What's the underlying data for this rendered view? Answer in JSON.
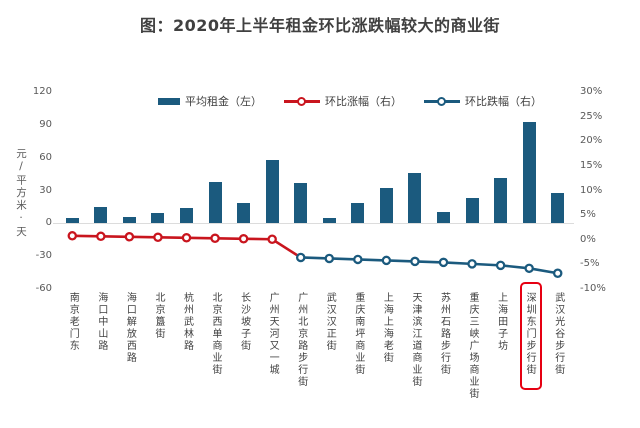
{
  "chart_data": {
    "type": "combo-bar-line",
    "title": "图：2020年上半年租金环比涨跌幅较大的商业街",
    "categories": [
      "南京老门东",
      "海口中山路",
      "海口解放西路",
      "北京簋街",
      "杭州武林路",
      "北京西单商业街",
      "长沙坡子街",
      "广州天河又一城",
      "广州北京路步行街",
      "武汉汉正街",
      "重庆南坪商业街",
      "上海上海老街",
      "天津滨江道商业街",
      "苏州石路步行街",
      "重庆三峡广场商业街",
      "上海田子坊",
      "深圳东门步行街",
      "武汉光谷步行街"
    ],
    "highlighted_category": "深圳东门步行街",
    "highlighted_index": 16,
    "highlight_color": "#e60012",
    "bar_series": {
      "name": "平均租金（左）",
      "color": "#1b5a7e",
      "axis": "left",
      "values": [
        5,
        15,
        6,
        9,
        14,
        38,
        19,
        58,
        37,
        5,
        19,
        32,
        46,
        10,
        23,
        41,
        93,
        28
      ]
    },
    "line_series": [
      {
        "name": "环比涨幅（右）",
        "color": "#c9151e",
        "axis": "right",
        "start_index": 0,
        "connects_to_next": true,
        "values": [
          0.8,
          0.7,
          0.6,
          0.5,
          0.4,
          0.3,
          0.2,
          0.1
        ]
      },
      {
        "name": "环比跌幅（右）",
        "color": "#1b5a7e",
        "axis": "right",
        "start_index": 8,
        "values": [
          -3.6,
          -3.8,
          -4.0,
          -4.2,
          -4.4,
          -4.6,
          -4.9,
          -5.2,
          -5.8,
          -6.8
        ]
      }
    ],
    "left_axis": {
      "title": "元/平方米·天",
      "ticks": [
        120,
        90,
        60,
        30,
        0,
        -30,
        -60
      ],
      "min": -60,
      "max": 120
    },
    "right_axis": {
      "ticks": [
        "30%",
        "25%",
        "20%",
        "15%",
        "10%",
        "5%",
        "0%",
        "-5%",
        "-10%"
      ],
      "min": -10,
      "max": 30
    },
    "grid": "zero-baseline-only",
    "legend_position": "top"
  }
}
